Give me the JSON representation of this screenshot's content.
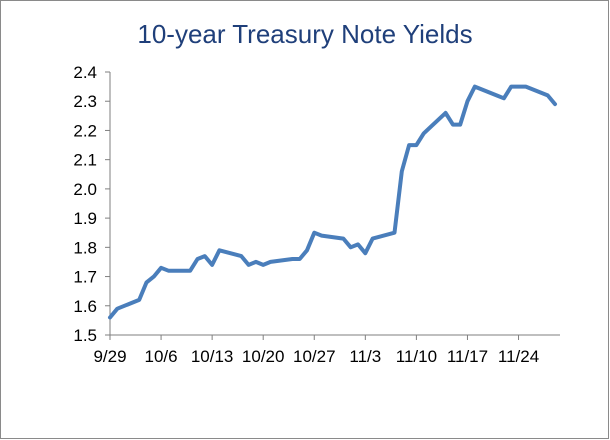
{
  "chart_data": {
    "type": "line",
    "title": "10-year Treasury Note Yields",
    "xlabel": "",
    "ylabel": "",
    "ylim": [
      1.5,
      2.4
    ],
    "yticks": [
      "1.5",
      "1.6",
      "1.7",
      "1.8",
      "1.9",
      "2.0",
      "2.1",
      "2.2",
      "2.3",
      "2.4"
    ],
    "xticks": [
      "9/29",
      "10/6",
      "10/13",
      "10/20",
      "10/27",
      "11/3",
      "11/10",
      "11/17",
      "11/24"
    ],
    "grid": false,
    "legend": "none",
    "line_color": "#4a7ebb",
    "series": [
      {
        "x": [
          "9/29",
          "9/30",
          "10/3",
          "10/4",
          "10/5",
          "10/6",
          "10/7",
          "10/10",
          "10/11",
          "10/12",
          "10/13",
          "10/14",
          "10/17",
          "10/18",
          "10/19",
          "10/20",
          "10/21",
          "10/24",
          "10/25",
          "10/26",
          "10/27",
          "10/28",
          "10/31",
          "11/1",
          "11/2",
          "11/3",
          "11/4",
          "11/7",
          "11/8",
          "11/9",
          "11/10",
          "11/11",
          "11/14",
          "11/15",
          "11/16",
          "11/17",
          "11/18",
          "11/21",
          "11/22",
          "11/23",
          "11/25",
          "11/28",
          "11/29"
        ],
        "values": [
          1.56,
          1.59,
          1.62,
          1.68,
          1.7,
          1.73,
          1.72,
          1.72,
          1.76,
          1.77,
          1.74,
          1.79,
          1.77,
          1.74,
          1.75,
          1.74,
          1.75,
          1.76,
          1.76,
          1.79,
          1.85,
          1.84,
          1.83,
          1.8,
          1.81,
          1.78,
          1.83,
          1.85,
          2.06,
          2.15,
          2.15,
          2.19,
          2.26,
          2.22,
          2.22,
          2.3,
          2.35,
          2.32,
          2.31,
          2.35,
          2.35,
          2.32,
          2.29
        ]
      }
    ]
  }
}
